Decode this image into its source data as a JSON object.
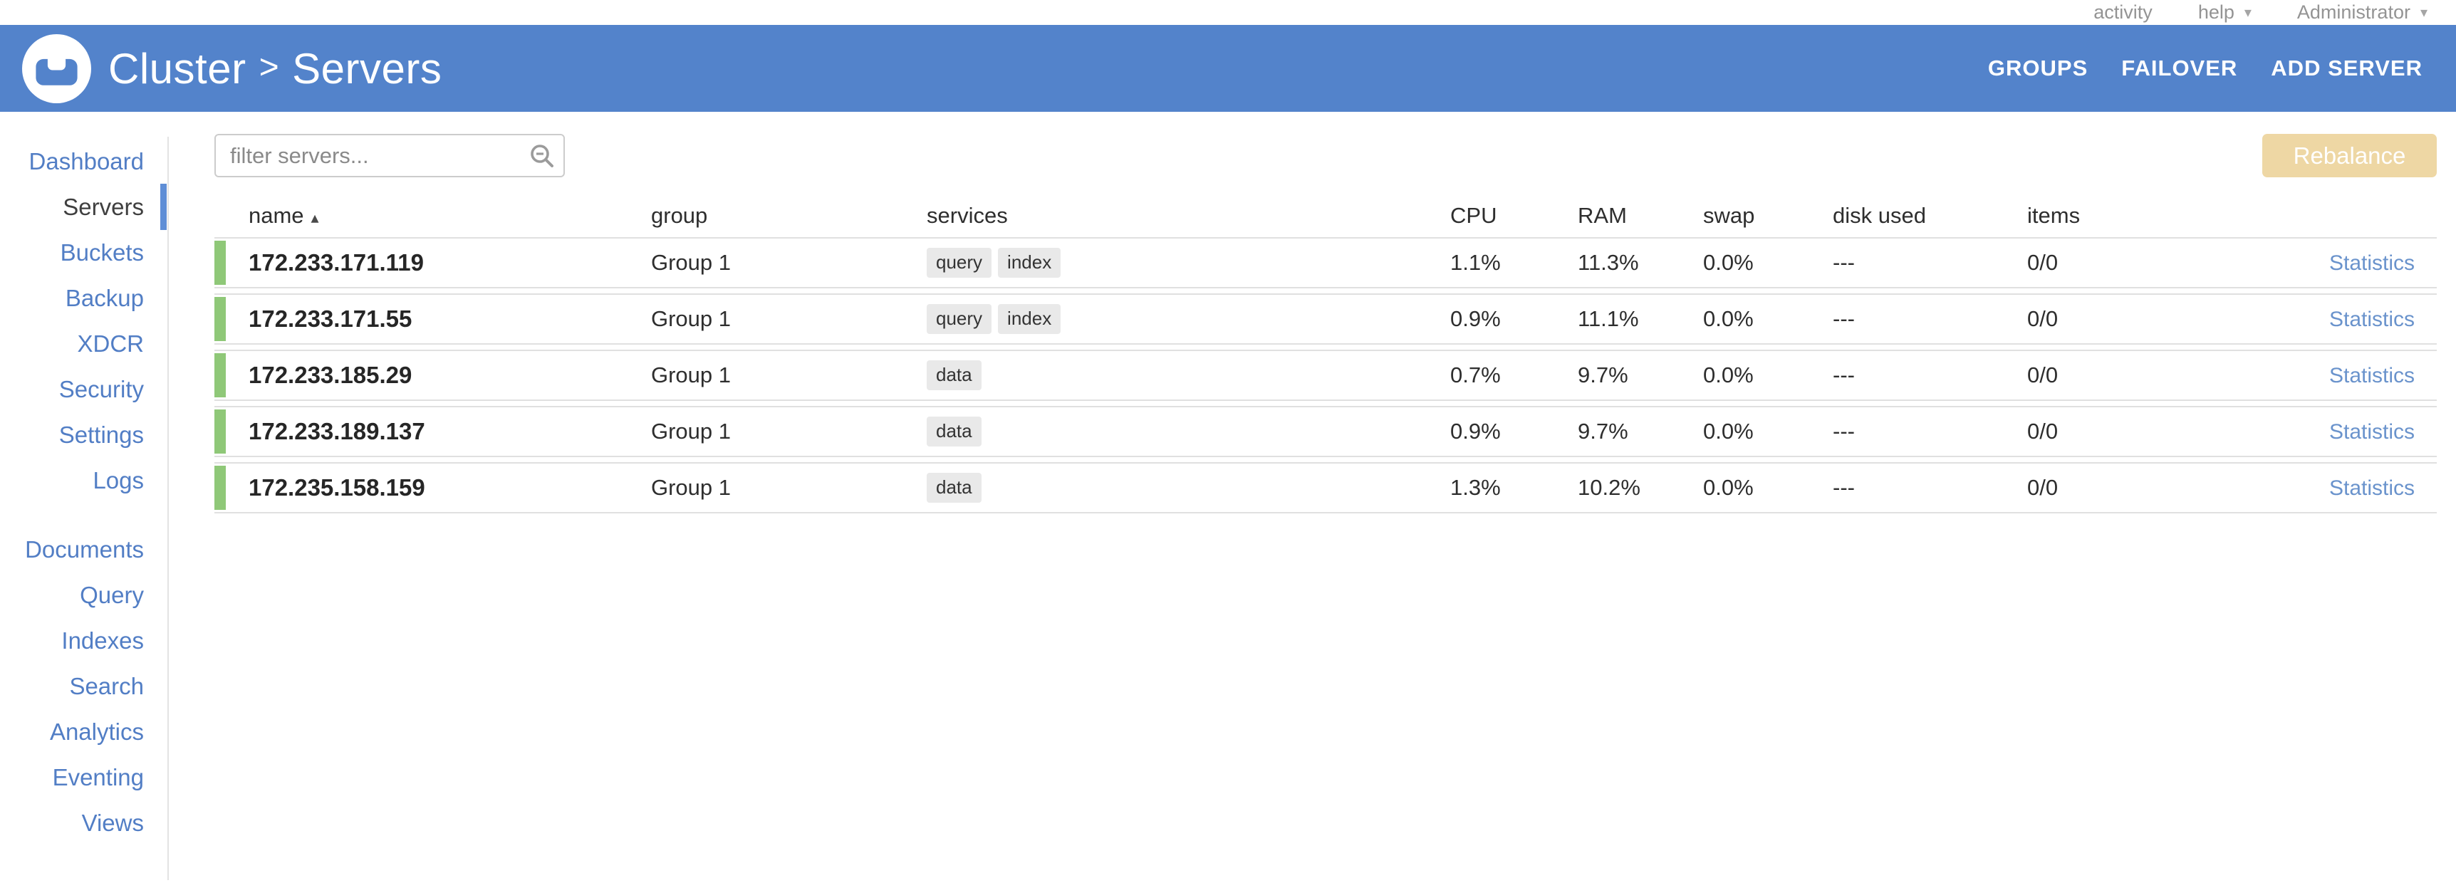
{
  "top_bar": {
    "activity_label": "activity",
    "help_label": "help",
    "user_label": "Administrator"
  },
  "header": {
    "breadcrumb_section": "Cluster",
    "breadcrumb_separator": ">",
    "breadcrumb_page": "Servers",
    "actions": [
      "GROUPS",
      "FAILOVER",
      "ADD SERVER"
    ]
  },
  "sidebar": {
    "primary_items": [
      "Dashboard",
      "Servers",
      "Buckets",
      "Backup",
      "XDCR",
      "Security",
      "Settings",
      "Logs"
    ],
    "secondary_items": [
      "Documents",
      "Query",
      "Indexes",
      "Search",
      "Analytics",
      "Eventing",
      "Views"
    ],
    "selected": "Servers"
  },
  "toolbar": {
    "filter_placeholder": "filter servers...",
    "rebalance_label": "Rebalance"
  },
  "table": {
    "columns": [
      "name",
      "group",
      "services",
      "CPU",
      "RAM",
      "swap",
      "disk used",
      "items"
    ],
    "sorted_column": "name",
    "sort_direction": "ascending",
    "statistics_label": "Statistics",
    "rows": [
      {
        "name": "172.233.171.119",
        "group": "Group 1",
        "services": [
          "query",
          "index"
        ],
        "cpu": "1.1%",
        "ram": "11.3%",
        "swap": "0.0%",
        "disk_used": "---",
        "items": "0/0"
      },
      {
        "name": "172.233.171.55",
        "group": "Group 1",
        "services": [
          "query",
          "index"
        ],
        "cpu": "0.9%",
        "ram": "11.1%",
        "swap": "0.0%",
        "disk_used": "---",
        "items": "0/0"
      },
      {
        "name": "172.233.185.29",
        "group": "Group 1",
        "services": [
          "data"
        ],
        "cpu": "0.7%",
        "ram": "9.7%",
        "swap": "0.0%",
        "disk_used": "---",
        "items": "0/0"
      },
      {
        "name": "172.233.189.137",
        "group": "Group 1",
        "services": [
          "data"
        ],
        "cpu": "0.9%",
        "ram": "9.7%",
        "swap": "0.0%",
        "disk_used": "---",
        "items": "0/0"
      },
      {
        "name": "172.235.158.159",
        "group": "Group 1",
        "services": [
          "data"
        ],
        "cpu": "1.3%",
        "ram": "10.2%",
        "swap": "0.0%",
        "disk_used": "---",
        "items": "0/0"
      }
    ]
  },
  "colors": {
    "header_blue": "#5383cb",
    "healthy_green": "#8fc878",
    "rebalance_tan": "#eed7a4",
    "sidebar_link_blue": "#527ec5",
    "statistics_link_blue": "#6a93cc",
    "selected_indicator_blue": "#5f8ed6"
  }
}
